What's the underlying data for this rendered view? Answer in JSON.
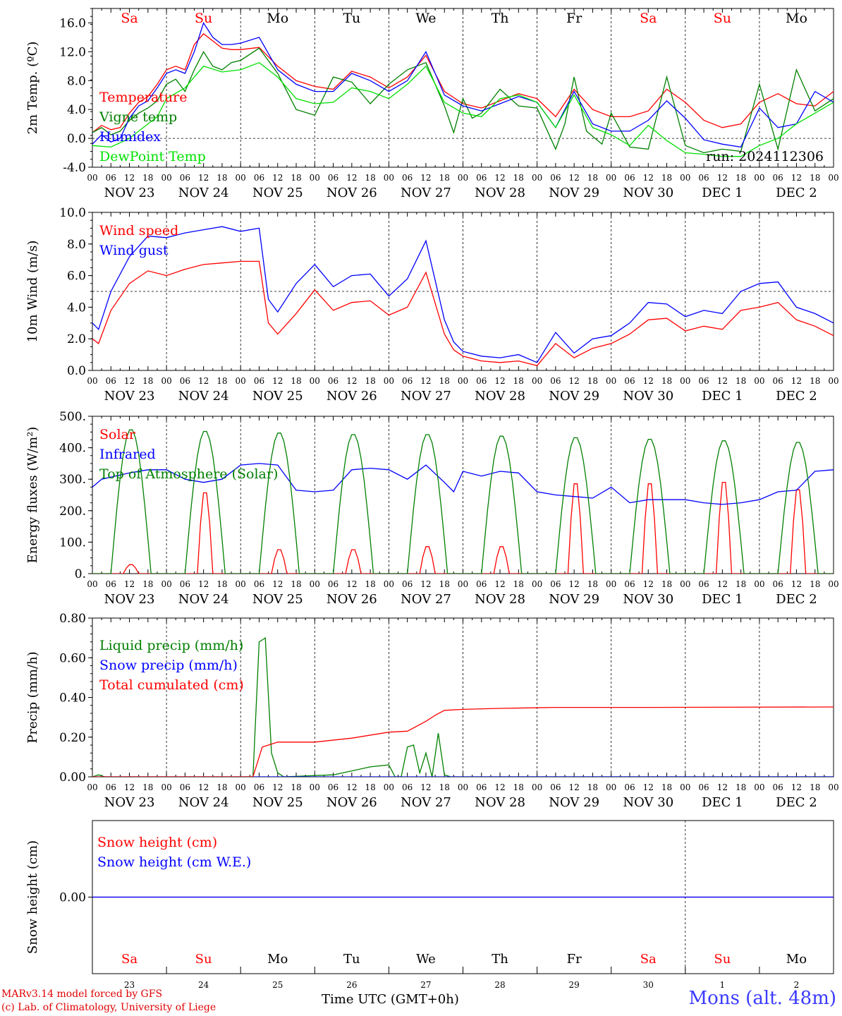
{
  "colors": {
    "red": "#ff0000",
    "green": "#008000",
    "blue": "#0000ff",
    "lightgreen": "#00e000",
    "purple": "#800080",
    "station": "#3a3aff"
  },
  "days": [
    {
      "abbr": "Sa",
      "weekend": true,
      "label": "NOV 23",
      "num": "23"
    },
    {
      "abbr": "Su",
      "weekend": true,
      "label": "NOV 24",
      "num": "24"
    },
    {
      "abbr": "Mo",
      "weekend": false,
      "label": "NOV 25",
      "num": "25"
    },
    {
      "abbr": "Tu",
      "weekend": false,
      "label": "NOV 26",
      "num": "26"
    },
    {
      "abbr": "We",
      "weekend": false,
      "label": "NOV 27",
      "num": "27"
    },
    {
      "abbr": "Th",
      "weekend": false,
      "label": "NOV 28",
      "num": "28"
    },
    {
      "abbr": "Fr",
      "weekend": false,
      "label": "NOV 29",
      "num": "29"
    },
    {
      "abbr": "Sa",
      "weekend": true,
      "label": "NOV 30",
      "num": "30"
    },
    {
      "abbr": "Su",
      "weekend": true,
      "label": "DEC  1",
      "num": "1"
    },
    {
      "abbr": "Mo",
      "weekend": false,
      "label": "DEC  2",
      "num": "2"
    }
  ],
  "hour_ticks": [
    "00",
    "06",
    "12",
    "18"
  ],
  "hour_end": "00",
  "footer": {
    "credit1": "MARv3.14 model forced by GFS",
    "credit2": "(c) Lab. of Climatology, University of Liege",
    "xlabel": "Time UTC (GMT+0h)",
    "station": "Mons (alt. 48m)"
  },
  "chart_data": [
    {
      "type": "line",
      "ylabel": "2m Temp. (ºC)",
      "ylim": [
        -4,
        18
      ],
      "yticks": [
        "-4.0",
        "0.0",
        "4.0",
        "8.0",
        "12.0",
        "16.0"
      ],
      "refline": 0,
      "annotation": "run: 2024112306",
      "x_unit": "hours since 2024-11-23 00 UTC",
      "series": [
        {
          "name": "Temperature",
          "color": "red",
          "x": [
            0,
            3,
            6,
            9,
            12,
            15,
            18,
            21,
            24,
            27,
            30,
            33,
            36,
            39,
            42,
            45,
            48,
            54,
            60,
            66,
            72,
            78,
            84,
            90,
            96,
            102,
            108,
            114,
            120,
            126,
            132,
            138,
            144,
            150,
            156,
            162,
            168,
            174,
            180,
            186,
            192,
            198,
            204,
            210,
            216,
            222,
            228,
            234,
            240
          ],
          "y": [
            0.8,
            1.8,
            1.2,
            1.5,
            3.5,
            5.0,
            5.8,
            7.5,
            9.5,
            10.0,
            9.5,
            13.0,
            14.5,
            13.5,
            12.5,
            12.3,
            12.3,
            12.6,
            10.0,
            8.0,
            7.2,
            6.8,
            9.3,
            8.5,
            7.0,
            8.5,
            11.5,
            6.5,
            4.8,
            4.2,
            5.2,
            6.2,
            5.5,
            3.0,
            6.8,
            4.0,
            3.0,
            3.0,
            3.8,
            6.8,
            5.0,
            2.5,
            1.5,
            2.0,
            5.0,
            6.2,
            4.8,
            4.5,
            6.5
          ]
        },
        {
          "name": "Vigne temp",
          "color": "green",
          "x": [
            0,
            3,
            6,
            9,
            12,
            15,
            18,
            21,
            24,
            27,
            30,
            33,
            36,
            39,
            42,
            45,
            48,
            54,
            60,
            66,
            72,
            78,
            84,
            90,
            96,
            102,
            108,
            114,
            117,
            120,
            123,
            126,
            132,
            138,
            144,
            150,
            153,
            156,
            160,
            165,
            168,
            174,
            180,
            186,
            192,
            198,
            204,
            210,
            216,
            222,
            228,
            234,
            240
          ],
          "y": [
            0.8,
            1.5,
            0.5,
            1.0,
            2.5,
            3.5,
            4.2,
            5.2,
            7.5,
            8.2,
            6.5,
            9.5,
            12.0,
            10.0,
            9.5,
            10.5,
            10.8,
            12.5,
            9.0,
            4.0,
            3.2,
            8.5,
            7.8,
            4.8,
            7.5,
            9.5,
            10.5,
            4.5,
            0.8,
            5.5,
            2.8,
            3.5,
            6.8,
            4.5,
            4.2,
            -1.5,
            2.0,
            8.5,
            1.0,
            -0.8,
            3.5,
            -1.2,
            -1.5,
            8.5,
            -1.0,
            -2.0,
            -1.5,
            -1.8,
            7.5,
            -1.5,
            9.5,
            3.8,
            5.5
          ]
        },
        {
          "name": "Humidex",
          "color": "blue",
          "x": [
            0,
            3,
            6,
            9,
            12,
            15,
            18,
            21,
            24,
            27,
            30,
            33,
            36,
            39,
            42,
            45,
            48,
            54,
            60,
            66,
            72,
            78,
            84,
            90,
            96,
            102,
            108,
            114,
            120,
            126,
            132,
            138,
            144,
            150,
            156,
            162,
            168,
            174,
            180,
            186,
            192,
            198,
            204,
            210,
            216,
            222,
            228,
            234,
            240
          ],
          "y": [
            -0.8,
            0.5,
            -0.5,
            0.0,
            2.8,
            4.5,
            5.2,
            7.0,
            9.0,
            9.5,
            9.0,
            12.0,
            16.0,
            14.0,
            13.0,
            13.0,
            13.2,
            14.0,
            9.5,
            7.5,
            6.5,
            6.5,
            9.0,
            8.0,
            6.5,
            8.0,
            12.0,
            6.0,
            4.5,
            3.8,
            4.8,
            5.8,
            5.0,
            1.5,
            6.5,
            2.0,
            1.0,
            1.0,
            2.5,
            5.2,
            2.8,
            -0.2,
            -0.8,
            -1.2,
            4.2,
            1.5,
            2.0,
            6.5,
            5.0
          ]
        },
        {
          "name": "DewPoint Temp",
          "color": "lightgreen",
          "x": [
            0,
            6,
            12,
            18,
            21,
            24,
            30,
            36,
            42,
            48,
            54,
            60,
            66,
            72,
            78,
            84,
            90,
            96,
            102,
            108,
            114,
            120,
            126,
            132,
            138,
            144,
            150,
            156,
            162,
            168,
            174,
            180,
            186,
            192,
            198,
            204,
            210,
            216,
            222,
            228,
            234,
            240
          ],
          "y": [
            -1.0,
            -1.2,
            0.0,
            2.0,
            3.0,
            5.5,
            7.0,
            10.0,
            9.2,
            9.5,
            10.5,
            8.5,
            5.5,
            4.8,
            5.0,
            7.0,
            6.5,
            5.5,
            7.5,
            10.0,
            5.0,
            3.5,
            3.0,
            5.5,
            6.0,
            5.0,
            1.5,
            6.0,
            1.5,
            0.5,
            -1.0,
            1.8,
            -0.3,
            -2.0,
            -2.2,
            -2.5,
            -2.5,
            -1.0,
            0.0,
            2.0,
            3.5,
            5.0
          ]
        }
      ]
    },
    {
      "type": "line",
      "ylabel": "10m Wind (m/s)",
      "ylim": [
        0,
        10
      ],
      "yticks": [
        "0.0",
        "2.0",
        "4.0",
        "6.0",
        "8.0",
        "10.0"
      ],
      "refline": 5,
      "x_unit": "hours since 2024-11-23 00 UTC",
      "series": [
        {
          "name": "Wind speed",
          "color": "red",
          "x": [
            0,
            2,
            6,
            12,
            18,
            24,
            30,
            36,
            42,
            48,
            54,
            57,
            60,
            66,
            72,
            78,
            84,
            90,
            96,
            102,
            108,
            114,
            117,
            120,
            126,
            132,
            138,
            144,
            150,
            156,
            162,
            168,
            174,
            180,
            186,
            192,
            198,
            204,
            210,
            216,
            222,
            228,
            234,
            240
          ],
          "y": [
            2.0,
            1.7,
            3.8,
            5.5,
            6.3,
            6.0,
            6.4,
            6.7,
            6.8,
            6.9,
            6.9,
            3.0,
            2.3,
            3.6,
            5.1,
            3.8,
            4.3,
            4.4,
            3.5,
            4.0,
            6.2,
            2.3,
            1.3,
            0.9,
            0.6,
            0.5,
            0.6,
            0.3,
            1.7,
            0.8,
            1.4,
            1.7,
            2.3,
            3.2,
            3.3,
            2.5,
            2.8,
            2.6,
            3.8,
            4.0,
            4.3,
            3.2,
            2.8,
            2.2
          ]
        },
        {
          "name": "Wind gust",
          "color": "blue",
          "x": [
            0,
            2,
            6,
            12,
            18,
            24,
            30,
            36,
            42,
            48,
            54,
            57,
            60,
            66,
            72,
            78,
            84,
            90,
            96,
            102,
            108,
            114,
            117,
            120,
            126,
            132,
            138,
            144,
            150,
            156,
            162,
            168,
            174,
            180,
            186,
            192,
            198,
            204,
            210,
            216,
            222,
            228,
            234,
            240
          ],
          "y": [
            3.0,
            2.6,
            5.0,
            7.2,
            8.5,
            8.4,
            8.7,
            8.9,
            9.1,
            8.8,
            9.0,
            4.5,
            3.7,
            5.5,
            6.7,
            5.3,
            6.0,
            6.1,
            4.7,
            5.8,
            8.2,
            3.2,
            1.8,
            1.2,
            0.9,
            0.8,
            1.0,
            0.5,
            2.4,
            1.1,
            2.0,
            2.2,
            3.0,
            4.3,
            4.2,
            3.4,
            3.8,
            3.6,
            5.0,
            5.5,
            5.6,
            4.0,
            3.6,
            3.0
          ]
        }
      ]
    },
    {
      "type": "line",
      "ylabel": "Energy fluxes (W/m²)",
      "ylim": [
        0,
        500
      ],
      "yticks": [
        "0.",
        "100.",
        "200.",
        "300.",
        "400.",
        "500."
      ],
      "x_unit": "hours since 2024-11-23 00 UTC",
      "series": [
        {
          "name": "Solar",
          "color": "red",
          "peaks": [
            30,
            270,
            80,
            80,
            90,
            90,
            300,
            300,
            305,
            280
          ]
        },
        {
          "name": "Infrared",
          "color": "blue",
          "x": [
            0,
            3,
            12,
            18,
            24,
            30,
            36,
            42,
            48,
            54,
            60,
            66,
            72,
            78,
            84,
            90,
            96,
            102,
            108,
            114,
            117,
            120,
            126,
            132,
            138,
            144,
            150,
            156,
            162,
            168,
            174,
            180,
            186,
            192,
            198,
            204,
            210,
            216,
            222,
            228,
            234,
            240
          ],
          "y": [
            275,
            300,
            320,
            330,
            330,
            300,
            290,
            300,
            345,
            350,
            345,
            265,
            260,
            265,
            330,
            335,
            330,
            300,
            345,
            290,
            260,
            325,
            310,
            325,
            320,
            260,
            250,
            245,
            240,
            275,
            225,
            235,
            235,
            235,
            225,
            220,
            225,
            235,
            260,
            265,
            325,
            330
          ]
        },
        {
          "name": "Top of Atmosphere (Solar)",
          "color": "green",
          "peaks": [
            460,
            455,
            450,
            445,
            445,
            440,
            435,
            430,
            425,
            420
          ]
        }
      ]
    },
    {
      "type": "line",
      "ylabel": "Precip (mm/h)",
      "ylim": [
        0,
        0.8
      ],
      "yticks": [
        "0.00",
        "0.20",
        "0.40",
        "0.60",
        "0.80"
      ],
      "x_unit": "hours since 2024-11-23 00 UTC",
      "series": [
        {
          "name": "Liquid precip (mm/h)",
          "color": "green",
          "x": [
            0,
            2,
            4,
            52,
            54,
            56,
            58,
            60,
            62,
            78,
            84,
            90,
            96,
            98,
            100,
            102,
            104,
            106,
            108,
            110,
            112,
            114,
            116,
            118,
            240
          ],
          "y": [
            0,
            0.01,
            0,
            0,
            0.68,
            0.7,
            0.12,
            0.02,
            0,
            0.01,
            0.03,
            0.05,
            0.06,
            0,
            0,
            0.15,
            0.16,
            0.02,
            0.12,
            0,
            0.22,
            0.01,
            0,
            0,
            0
          ]
        },
        {
          "name": "Snow precip (mm/h)",
          "color": "blue",
          "x": [
            0,
            240
          ],
          "y": [
            0,
            0
          ]
        },
        {
          "name": "Total cumulated (cm)",
          "color": "red",
          "x": [
            0,
            52,
            53,
            55,
            60,
            72,
            84,
            96,
            102,
            108,
            111,
            114,
            120,
            132,
            150,
            180,
            240
          ],
          "y": [
            0,
            0,
            0.05,
            0.15,
            0.175,
            0.175,
            0.195,
            0.225,
            0.23,
            0.28,
            0.31,
            0.335,
            0.34,
            0.345,
            0.35,
            0.35,
            0.352
          ]
        }
      ]
    },
    {
      "type": "line",
      "ylabel": "Snow height (cm)",
      "yticks": [
        "0.00"
      ],
      "series": [
        {
          "name": "Snow height (cm)",
          "color": "red",
          "x": [
            0,
            240
          ],
          "y": [
            0,
            0
          ]
        },
        {
          "name": "Snow height (cm W.E.)",
          "color": "blue",
          "x": [
            0,
            240
          ],
          "y": [
            0,
            0
          ]
        }
      ]
    }
  ]
}
